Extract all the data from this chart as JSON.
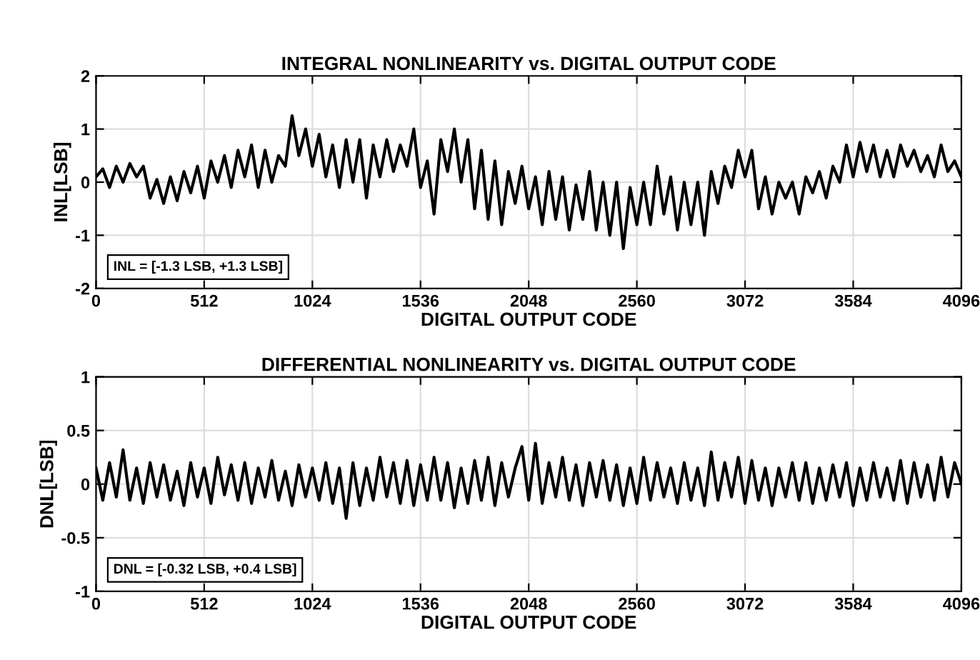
{
  "chart_data": [
    {
      "type": "line",
      "title": "INTEGRAL NONLINEARITY vs. DIGITAL OUTPUT CODE",
      "xlabel": "DIGITAL OUTPUT CODE",
      "ylabel": "INL[LSB]",
      "xlim": [
        0,
        4096
      ],
      "xticks": [
        0,
        512,
        1024,
        1536,
        2048,
        2560,
        3072,
        3584,
        4096
      ],
      "ylim": [
        -2,
        2
      ],
      "yticks": [
        -2,
        -1,
        0,
        1,
        2
      ],
      "grid": true,
      "annotations": [
        "INL = [-1.3 LSB, +1.3 LSB]"
      ],
      "x": [
        0,
        32,
        64,
        96,
        128,
        160,
        192,
        224,
        256,
        288,
        320,
        352,
        384,
        416,
        448,
        480,
        512,
        544,
        576,
        608,
        640,
        672,
        704,
        736,
        768,
        800,
        832,
        864,
        896,
        928,
        960,
        992,
        1024,
        1056,
        1088,
        1120,
        1152,
        1184,
        1216,
        1248,
        1280,
        1312,
        1344,
        1376,
        1408,
        1440,
        1472,
        1504,
        1536,
        1568,
        1600,
        1632,
        1664,
        1696,
        1728,
        1760,
        1792,
        1824,
        1856,
        1888,
        1920,
        1952,
        1984,
        2016,
        2048,
        2080,
        2112,
        2144,
        2176,
        2208,
        2240,
        2272,
        2304,
        2336,
        2368,
        2400,
        2432,
        2464,
        2496,
        2528,
        2560,
        2592,
        2624,
        2656,
        2688,
        2720,
        2752,
        2784,
        2816,
        2848,
        2880,
        2912,
        2944,
        2976,
        3008,
        3040,
        3072,
        3104,
        3136,
        3168,
        3200,
        3232,
        3264,
        3296,
        3328,
        3360,
        3392,
        3424,
        3456,
        3488,
        3520,
        3552,
        3584,
        3616,
        3648,
        3680,
        3712,
        3744,
        3776,
        3808,
        3840,
        3872,
        3904,
        3936,
        3968,
        4000,
        4032,
        4064,
        4096
      ],
      "series": [
        {
          "color": "#000000",
          "values": [
            0.1,
            0.25,
            -0.1,
            0.3,
            0.0,
            0.35,
            0.1,
            0.3,
            -0.3,
            0.05,
            -0.4,
            0.1,
            -0.35,
            0.2,
            -0.2,
            0.3,
            -0.3,
            0.4,
            0.0,
            0.5,
            -0.1,
            0.6,
            0.1,
            0.7,
            -0.1,
            0.6,
            0.0,
            0.5,
            0.3,
            1.25,
            0.5,
            1.0,
            0.3,
            0.9,
            0.1,
            0.7,
            -0.1,
            0.8,
            0.0,
            0.8,
            -0.3,
            0.7,
            0.1,
            0.8,
            0.2,
            0.7,
            0.3,
            1.0,
            -0.1,
            0.4,
            -0.6,
            0.8,
            0.2,
            1.0,
            0.0,
            0.8,
            -0.5,
            0.6,
            -0.7,
            0.4,
            -0.8,
            0.2,
            -0.4,
            0.3,
            -0.5,
            0.1,
            -0.8,
            0.2,
            -0.7,
            0.1,
            -0.9,
            -0.05,
            -0.7,
            0.2,
            -0.9,
            0.0,
            -1.0,
            0.0,
            -1.25,
            -0.1,
            -0.8,
            0.0,
            -0.8,
            0.3,
            -0.6,
            0.1,
            -0.9,
            0.0,
            -0.8,
            0.0,
            -1.0,
            0.2,
            -0.4,
            0.3,
            -0.1,
            0.6,
            0.1,
            0.6,
            -0.5,
            0.1,
            -0.6,
            0.0,
            -0.3,
            0.0,
            -0.6,
            0.1,
            -0.2,
            0.2,
            -0.3,
            0.3,
            0.0,
            0.7,
            0.1,
            0.75,
            0.2,
            0.7,
            0.1,
            0.6,
            0.1,
            0.7,
            0.3,
            0.6,
            0.2,
            0.5,
            0.1,
            0.7,
            0.2,
            0.4,
            0.1
          ]
        }
      ]
    },
    {
      "type": "line",
      "title": "DIFFERENTIAL NONLINEARITY vs. DIGITAL OUTPUT CODE",
      "xlabel": "DIGITAL OUTPUT CODE",
      "ylabel": "DNL[LSB]",
      "xlim": [
        0,
        4096
      ],
      "xticks": [
        0,
        512,
        1024,
        1536,
        2048,
        2560,
        3072,
        3584,
        4096
      ],
      "ylim": [
        -1,
        1
      ],
      "yticks": [
        -1,
        -0.5,
        0,
        0.5,
        1
      ],
      "grid": true,
      "annotations": [
        "DNL = [-0.32 LSB, +0.4 LSB]"
      ],
      "x": [
        0,
        32,
        64,
        96,
        128,
        160,
        192,
        224,
        256,
        288,
        320,
        352,
        384,
        416,
        448,
        480,
        512,
        544,
        576,
        608,
        640,
        672,
        704,
        736,
        768,
        800,
        832,
        864,
        896,
        928,
        960,
        992,
        1024,
        1056,
        1088,
        1120,
        1152,
        1184,
        1216,
        1248,
        1280,
        1312,
        1344,
        1376,
        1408,
        1440,
        1472,
        1504,
        1536,
        1568,
        1600,
        1632,
        1664,
        1696,
        1728,
        1760,
        1792,
        1824,
        1856,
        1888,
        1920,
        1952,
        1984,
        2016,
        2048,
        2080,
        2112,
        2144,
        2176,
        2208,
        2240,
        2272,
        2304,
        2336,
        2368,
        2400,
        2432,
        2464,
        2496,
        2528,
        2560,
        2592,
        2624,
        2656,
        2688,
        2720,
        2752,
        2784,
        2816,
        2848,
        2880,
        2912,
        2944,
        2976,
        3008,
        3040,
        3072,
        3104,
        3136,
        3168,
        3200,
        3232,
        3264,
        3296,
        3328,
        3360,
        3392,
        3424,
        3456,
        3488,
        3520,
        3552,
        3584,
        3616,
        3648,
        3680,
        3712,
        3744,
        3776,
        3808,
        3840,
        3872,
        3904,
        3936,
        3968,
        4000,
        4032,
        4064,
        4096
      ],
      "series": [
        {
          "color": "#000000",
          "values": [
            0.15,
            -0.15,
            0.2,
            -0.12,
            0.32,
            -0.15,
            0.15,
            -0.18,
            0.2,
            -0.12,
            0.18,
            -0.15,
            0.12,
            -0.2,
            0.2,
            -0.12,
            0.15,
            -0.18,
            0.25,
            -0.1,
            0.18,
            -0.15,
            0.2,
            -0.18,
            0.15,
            -0.12,
            0.22,
            -0.15,
            0.12,
            -0.2,
            0.18,
            -0.12,
            0.15,
            -0.15,
            0.2,
            -0.18,
            0.15,
            -0.32,
            0.2,
            -0.2,
            0.15,
            -0.15,
            0.25,
            -0.12,
            0.2,
            -0.18,
            0.22,
            -0.2,
            0.18,
            -0.15,
            0.25,
            -0.15,
            0.2,
            -0.22,
            0.15,
            -0.18,
            0.22,
            -0.15,
            0.25,
            -0.2,
            0.2,
            -0.12,
            0.15,
            0.35,
            -0.15,
            0.38,
            -0.18,
            0.2,
            -0.12,
            0.25,
            -0.15,
            0.18,
            -0.2,
            0.2,
            -0.12,
            0.22,
            -0.15,
            0.18,
            -0.2,
            0.15,
            -0.18,
            0.25,
            -0.15,
            0.2,
            -0.12,
            0.15,
            -0.18,
            0.2,
            -0.15,
            0.15,
            -0.2,
            0.3,
            -0.15,
            0.2,
            -0.12,
            0.25,
            -0.18,
            0.22,
            -0.15,
            0.15,
            -0.2,
            0.15,
            -0.12,
            0.2,
            -0.15,
            0.2,
            -0.18,
            0.15,
            -0.15,
            0.18,
            -0.12,
            0.2,
            -0.2,
            0.15,
            -0.15,
            0.2,
            -0.12,
            0.15,
            -0.15,
            0.22,
            -0.18,
            0.2,
            -0.12,
            0.18,
            -0.15,
            0.25,
            -0.12,
            0.2,
            0.0
          ]
        }
      ]
    }
  ]
}
